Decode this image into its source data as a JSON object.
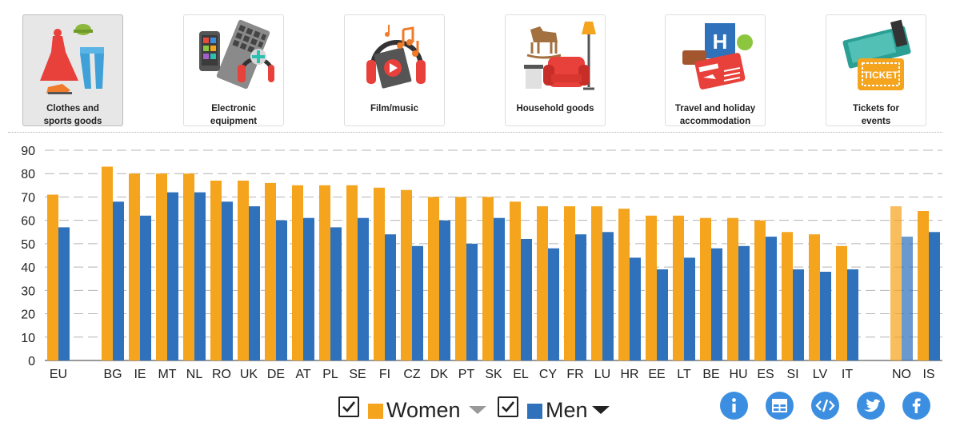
{
  "categories_bar": {
    "items": [
      {
        "label": "Clothes and\nsports goods",
        "icon": "clothes-sports-icon",
        "active": true
      },
      {
        "label": "Electronic\nequipment",
        "icon": "electronics-icon",
        "active": false
      },
      {
        "label": "Film/music",
        "icon": "film-music-icon",
        "active": false
      },
      {
        "label": "Household goods",
        "icon": "household-goods-icon",
        "active": false
      },
      {
        "label": "Travel and holiday\naccommodation",
        "icon": "travel-holiday-icon",
        "active": false
      },
      {
        "label": "Tickets for\nevents",
        "icon": "tickets-icon",
        "active": false
      }
    ]
  },
  "chart_data": {
    "type": "bar",
    "categories": [
      "EU",
      "",
      "BG",
      "IE",
      "MT",
      "NL",
      "RO",
      "UK",
      "DE",
      "AT",
      "PL",
      "SE",
      "FI",
      "CZ",
      "DK",
      "PT",
      "SK",
      "EL",
      "CY",
      "FR",
      "LU",
      "HR",
      "EE",
      "LT",
      "BE",
      "HU",
      "ES",
      "SI",
      "LV",
      "IT",
      "",
      "NO",
      "IS"
    ],
    "series": [
      {
        "name": "Women",
        "color": "#f5a41d",
        "values": [
          71,
          null,
          83,
          80,
          80,
          80,
          77,
          77,
          76,
          75,
          75,
          75,
          74,
          73,
          70,
          70,
          70,
          68,
          66,
          66,
          66,
          65,
          62,
          62,
          61,
          61,
          60,
          55,
          54,
          49,
          null,
          66,
          64
        ]
      },
      {
        "name": "Men",
        "color": "#2f72bb",
        "values": [
          57,
          null,
          68,
          62,
          72,
          72,
          68,
          66,
          60,
          61,
          57,
          61,
          54,
          49,
          60,
          50,
          61,
          52,
          48,
          54,
          55,
          44,
          39,
          44,
          48,
          49,
          53,
          39,
          38,
          39,
          null,
          53,
          55
        ]
      }
    ],
    "highlight_faded": [
      "NO"
    ],
    "ylim": [
      0,
      90
    ],
    "yticks": [
      0,
      10,
      20,
      30,
      40,
      50,
      60,
      70,
      80,
      90
    ],
    "grid": "dashed horizontal",
    "legend_position": "bottom"
  },
  "legend": {
    "women_label": "Women",
    "men_label": "Men",
    "women_color": "#f5a41d",
    "men_color": "#2f72bb"
  },
  "actions": [
    {
      "name": "info-button",
      "icon": "info-icon"
    },
    {
      "name": "table-button",
      "icon": "table-icon"
    },
    {
      "name": "embed-button",
      "icon": "code-icon"
    },
    {
      "name": "twitter-button",
      "icon": "twitter-icon"
    },
    {
      "name": "facebook-button",
      "icon": "facebook-icon"
    }
  ]
}
